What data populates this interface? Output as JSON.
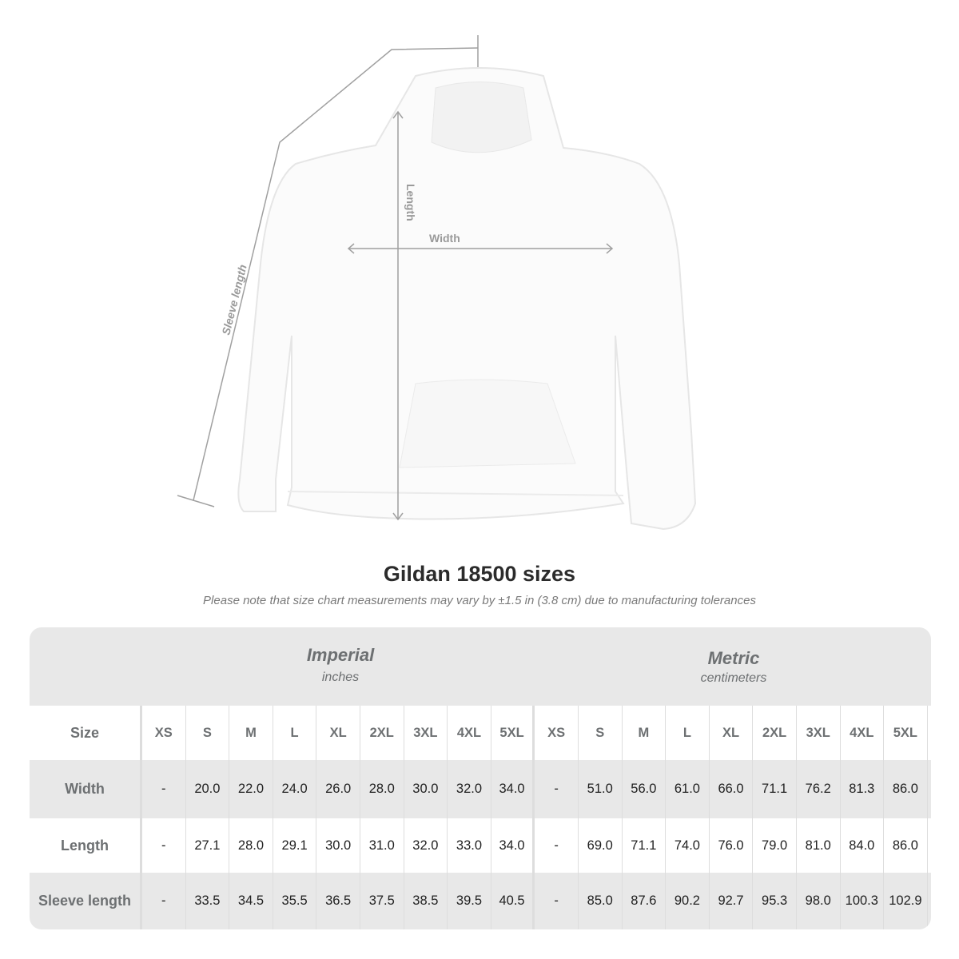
{
  "illustration": {
    "labels": {
      "length": "Length",
      "width": "Width",
      "sleeve": "Sleeve length"
    },
    "line_color": "#a0a0a0"
  },
  "title": "Gildan 18500 sizes",
  "note": "Please note that size chart measurements may vary by ±1.5 in (3.8 cm) due to manufacturing tolerances",
  "table": {
    "imperial": {
      "title": "Imperial",
      "unit": "inches"
    },
    "metric": {
      "title": "Metric",
      "unit": "centimeters"
    },
    "size_label": "Size",
    "sizes": [
      "XS",
      "S",
      "M",
      "L",
      "XL",
      "2XL",
      "3XL",
      "4XL",
      "5XL"
    ],
    "rows": [
      {
        "label": "Width",
        "imperial": [
          "-",
          "20.0",
          "22.0",
          "24.0",
          "26.0",
          "28.0",
          "30.0",
          "32.0",
          "34.0"
        ],
        "metric": [
          "-",
          "51.0",
          "56.0",
          "61.0",
          "66.0",
          "71.1",
          "76.2",
          "81.3",
          "86.0"
        ]
      },
      {
        "label": "Length",
        "imperial": [
          "-",
          "27.1",
          "28.0",
          "29.1",
          "30.0",
          "31.0",
          "32.0",
          "33.0",
          "34.0"
        ],
        "metric": [
          "-",
          "69.0",
          "71.1",
          "74.0",
          "76.0",
          "79.0",
          "81.0",
          "84.0",
          "86.0"
        ]
      },
      {
        "label": "Sleeve length",
        "imperial": [
          "-",
          "33.5",
          "34.5",
          "35.5",
          "36.5",
          "37.5",
          "38.5",
          "39.5",
          "40.5"
        ],
        "metric": [
          "-",
          "85.0",
          "87.6",
          "90.2",
          "92.7",
          "95.3",
          "98.0",
          "100.3",
          "102.9"
        ]
      }
    ]
  }
}
